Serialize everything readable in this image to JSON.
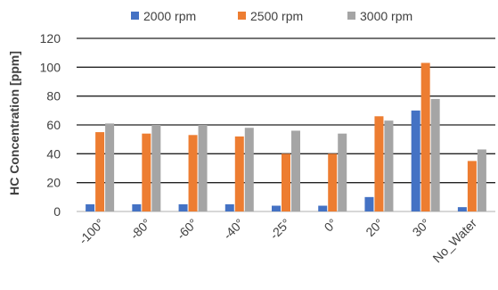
{
  "chart_data": {
    "type": "bar",
    "categories": [
      "-100°",
      "-80°",
      "-60°",
      "-40°",
      "-25°",
      "0°",
      "20°",
      "30°",
      "No_Water"
    ],
    "series": [
      {
        "name": "2000 rpm",
        "color": "#4472C4",
        "values": [
          5,
          5,
          5,
          5,
          4,
          4,
          10,
          70,
          3
        ]
      },
      {
        "name": "2500 rpm",
        "color": "#ED7D31",
        "values": [
          55,
          54,
          53,
          52,
          40,
          40,
          66,
          103,
          35
        ]
      },
      {
        "name": "3000 rpm",
        "color": "#A5A5A5",
        "values": [
          61,
          60,
          60,
          58,
          56,
          54,
          63,
          78,
          43
        ]
      }
    ],
    "title": "",
    "xlabel": "",
    "ylabel": "HC Concentration [ppm]",
    "ylim": [
      0,
      120
    ],
    "yticks": [
      0,
      20,
      40,
      60,
      80,
      100,
      120
    ],
    "grid": true,
    "legend_position": "top"
  }
}
